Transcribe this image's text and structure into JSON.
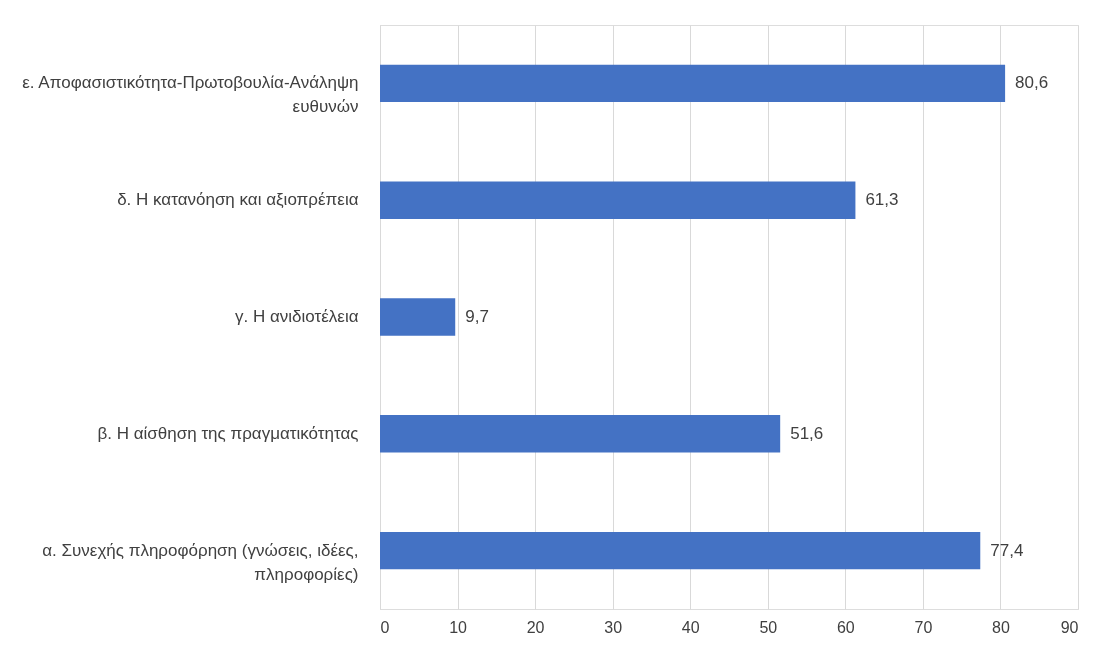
{
  "chart_data": {
    "type": "bar",
    "orientation": "horizontal",
    "categories": [
      "ε. Αποφασιστικότητα-Πρωτοβουλία-Ανάληψη ευθυνών",
      "δ. Η κατανόηση και αξιοπρέπεια",
      "γ. Η ανιδιοτέλεια",
      "β. Η αίσθηση της πραγματικότητας",
      "α. Συνεχής πληροφόρηση (γνώσεις, ιδέες, πληροφορίες)"
    ],
    "values": [
      80.6,
      61.3,
      9.7,
      51.6,
      77.4
    ],
    "value_labels": [
      "80,6",
      "61,3",
      "9,7",
      "51,6",
      "77,4"
    ],
    "color": "#4472c4",
    "xlim": [
      0,
      90
    ],
    "xticks": [
      0,
      10,
      20,
      30,
      40,
      50,
      60,
      70,
      80,
      90
    ],
    "grid": "x"
  }
}
